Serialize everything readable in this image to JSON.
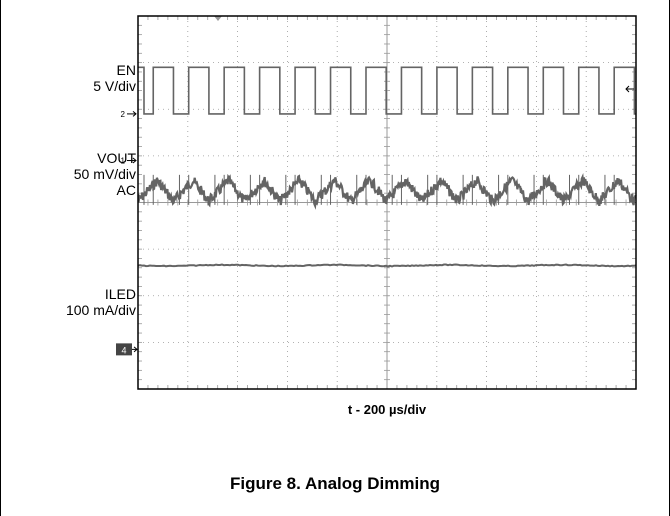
{
  "chart_data": {
    "type": "line",
    "title": "Figure 8. Analog Dimming",
    "xlabel": "t - 200 µs/div",
    "grid": true,
    "divisions": {
      "x": 10,
      "y": 8
    },
    "channel_markers": [
      "2",
      "1",
      "4"
    ],
    "channels": [
      {
        "name": "EN",
        "scale": "5 V/div",
        "coupling": "",
        "marker": "2",
        "waveform": "square",
        "low_level_div": 5.9,
        "high_level_div": 6.9,
        "period_div": 0.712,
        "duty_cycle": 0.57
      },
      {
        "name": "VOUT",
        "scale": "50 mV/div",
        "coupling": "AC",
        "marker": "1",
        "waveform": "triangle-ripple",
        "center_div": 4.25,
        "ripple_pp_div": 0.45,
        "period_div": 0.712,
        "noise_pp_div": 0.22
      },
      {
        "name": "ILED",
        "scale": "100 mA/div",
        "coupling": "",
        "marker": "4",
        "waveform": "dc",
        "level_div": 2.65,
        "ground_div": 0.85
      }
    ],
    "colors": {
      "trace": "#646464",
      "grid": "#999999",
      "frame": "#000000"
    }
  }
}
